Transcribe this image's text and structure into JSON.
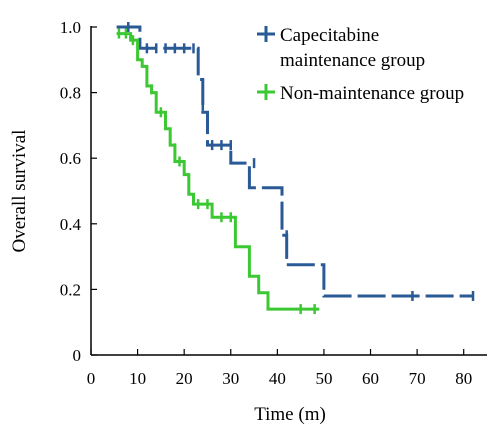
{
  "chart_data": {
    "type": "line",
    "subtype": "kaplan-meier",
    "xlabel": "Time (m)",
    "ylabel": "Overall survival",
    "xlim": [
      0,
      85
    ],
    "ylim": [
      0,
      1.0
    ],
    "xticks": [
      "0",
      "10",
      "20",
      "30",
      "40",
      "50",
      "60",
      "70",
      "80"
    ],
    "xtick_values": [
      0,
      10,
      20,
      30,
      40,
      50,
      60,
      70,
      80
    ],
    "yticks": [
      "0",
      "0.2",
      "0.4",
      "0.6",
      "0.8",
      "1.0"
    ],
    "ytick_values": [
      0,
      0.2,
      0.4,
      0.6,
      0.8,
      1.0
    ],
    "grid": false,
    "legend_position": "top-right",
    "series": [
      {
        "name": "Capecitabine maintenance group",
        "legend_lines": [
          "Capecitabine",
          "maintenance group"
        ],
        "color": "#2a5a96",
        "style": "dashed",
        "steps": [
          [
            5.5,
            1.0
          ],
          [
            10.5,
            1.0
          ],
          [
            10.5,
            0.935
          ],
          [
            23,
            0.935
          ],
          [
            23,
            0.84
          ],
          [
            24,
            0.84
          ],
          [
            24,
            0.74
          ],
          [
            25,
            0.74
          ],
          [
            25,
            0.64
          ],
          [
            30,
            0.64
          ],
          [
            30,
            0.585
          ],
          [
            34,
            0.585
          ],
          [
            34,
            0.51
          ],
          [
            41,
            0.51
          ],
          [
            41,
            0.365
          ],
          [
            42,
            0.365
          ],
          [
            42,
            0.275
          ],
          [
            50,
            0.275
          ],
          [
            50,
            0.18
          ],
          [
            82,
            0.18
          ]
        ],
        "censored": [
          [
            8,
            1.0
          ],
          [
            12,
            0.935
          ],
          [
            14,
            0.935
          ],
          [
            16,
            0.935
          ],
          [
            18,
            0.935
          ],
          [
            20,
            0.935
          ],
          [
            22,
            0.935
          ],
          [
            24,
            0.76
          ],
          [
            26,
            0.64
          ],
          [
            28,
            0.64
          ],
          [
            30,
            0.64
          ],
          [
            35,
            0.585
          ],
          [
            42,
            0.365
          ],
          [
            69,
            0.18
          ],
          [
            82,
            0.18
          ]
        ]
      },
      {
        "name": "Non-maintenance group",
        "legend_lines": [
          "Non-maintenance group"
        ],
        "color": "#3cc832",
        "style": "solid",
        "steps": [
          [
            5.5,
            0.98
          ],
          [
            8.5,
            0.98
          ],
          [
            8.5,
            0.96
          ],
          [
            10,
            0.96
          ],
          [
            10,
            0.9
          ],
          [
            11,
            0.9
          ],
          [
            11,
            0.88
          ],
          [
            12,
            0.88
          ],
          [
            12,
            0.82
          ],
          [
            13,
            0.82
          ],
          [
            13,
            0.8
          ],
          [
            14,
            0.8
          ],
          [
            14,
            0.74
          ],
          [
            16,
            0.74
          ],
          [
            16,
            0.69
          ],
          [
            17,
            0.69
          ],
          [
            17,
            0.64
          ],
          [
            18,
            0.64
          ],
          [
            18,
            0.59
          ],
          [
            20,
            0.59
          ],
          [
            20,
            0.55
          ],
          [
            21,
            0.55
          ],
          [
            21,
            0.49
          ],
          [
            22,
            0.49
          ],
          [
            22,
            0.46
          ],
          [
            26,
            0.46
          ],
          [
            26,
            0.42
          ],
          [
            31,
            0.42
          ],
          [
            31,
            0.33
          ],
          [
            34,
            0.33
          ],
          [
            34,
            0.24
          ],
          [
            36,
            0.24
          ],
          [
            36,
            0.19
          ],
          [
            38,
            0.19
          ],
          [
            38,
            0.14
          ],
          [
            49,
            0.14
          ]
        ],
        "censored": [
          [
            6,
            0.98
          ],
          [
            7.5,
            0.98
          ],
          [
            9,
            0.96
          ],
          [
            13,
            0.81
          ],
          [
            15,
            0.74
          ],
          [
            17,
            0.66
          ],
          [
            18,
            0.63
          ],
          [
            19,
            0.59
          ],
          [
            21,
            0.51
          ],
          [
            23,
            0.46
          ],
          [
            25,
            0.46
          ],
          [
            28,
            0.42
          ],
          [
            30,
            0.42
          ],
          [
            45,
            0.14
          ],
          [
            48,
            0.14
          ]
        ]
      }
    ]
  }
}
